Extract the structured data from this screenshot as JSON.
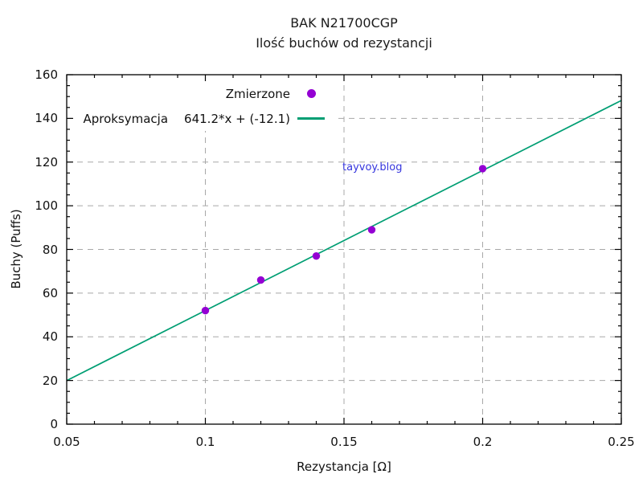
{
  "window": {
    "background": "#ffffff"
  },
  "title": {
    "line1": "BAK N21700CGP",
    "line2": "Ilość buchów od rezystancji"
  },
  "watermark": {
    "text": "tayvoy.blog",
    "color": "#3535dd"
  },
  "legend": {
    "measured_label": "Zmierzone",
    "fit_label": "Aproksymacja",
    "fit_formula": "641.2*x + (-12.1)"
  },
  "axes": {
    "x_label": "Rezystancja [Ω]",
    "y_label": "Buchy (Puffs)"
  },
  "chart_data": {
    "type": "scatter",
    "title": "BAK N21700CGP",
    "subtitle": "Ilość buchów od rezystancji",
    "xlabel": "Rezystancja [Ω]",
    "ylabel": "Buchy (Puffs)",
    "xlim": [
      0.05,
      0.25
    ],
    "ylim": [
      0,
      160
    ],
    "xticks": [
      0.05,
      0.1,
      0.15,
      0.2,
      0.25
    ],
    "xtick_labels": [
      "0.05",
      "0.1",
      "0.15",
      "0.2",
      "0.25"
    ],
    "yticks": [
      0,
      20,
      40,
      60,
      80,
      100,
      120,
      140,
      160
    ],
    "x_minor_step": 0.01,
    "y_minor_step": 5,
    "grid": true,
    "grid_color": "#a8a8a8",
    "legend_position": "top-left-inside",
    "series": [
      {
        "name": "Zmierzone",
        "type": "scatter",
        "marker": "filled-circle",
        "color": "#9400d3",
        "points": [
          [
            0.1,
            52
          ],
          [
            0.12,
            66
          ],
          [
            0.14,
            77
          ],
          [
            0.16,
            89
          ],
          [
            0.2,
            117
          ]
        ]
      },
      {
        "name": "Aproksymacja",
        "type": "line",
        "color": "#009e73",
        "formula": "641.2*x + (-12.1)",
        "slope": 641.2,
        "intercept": -12.1
      }
    ]
  }
}
